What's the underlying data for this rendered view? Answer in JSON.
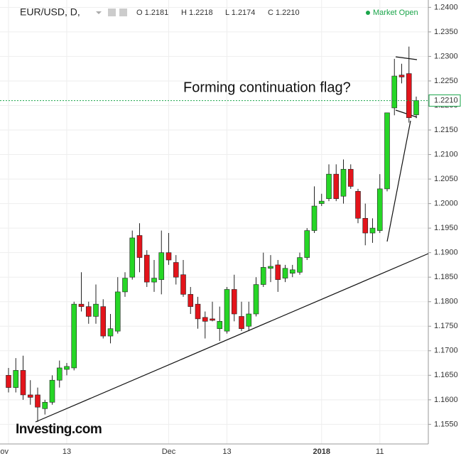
{
  "chart_data": {
    "type": "candlestick",
    "title": "EUR/USD, D,",
    "ohlc_text": [
      "O 1.2181",
      "H 1.2218",
      "L 1.2174",
      "C 1.2210"
    ],
    "status": "Market Open",
    "annotation": "Forming continuation flag?",
    "watermark": "Investing.com",
    "categories": [
      "ov",
      null,
      null,
      null,
      null,
      null,
      null,
      null,
      "13",
      null,
      null,
      null,
      null,
      null,
      null,
      null,
      null,
      null,
      null,
      null,
      null,
      null,
      "Dec",
      null,
      null,
      null,
      null,
      null,
      null,
      null,
      "13",
      null,
      null,
      null,
      null,
      null,
      null,
      null,
      null,
      null,
      null,
      null,
      null,
      "2018",
      null,
      null,
      null,
      null,
      null,
      null,
      null,
      "11",
      null,
      null,
      null,
      null,
      null
    ],
    "open": [
      1.165,
      1.1625,
      1.166,
      1.161,
      1.161,
      1.1582,
      1.1595,
      1.164,
      1.1662,
      1.1665,
      1.1795,
      1.179,
      1.177,
      1.179,
      1.173,
      1.174,
      1.182,
      1.185,
      1.1935,
      1.1895,
      1.184,
      1.1845,
      1.19,
      1.188,
      1.1855,
      1.1815,
      1.1795,
      1.1768,
      1.1765,
      1.1745,
      1.174,
      1.1825,
      1.177,
      1.175,
      1.1775,
      1.1835,
      1.1868,
      1.1875,
      1.1848,
      1.1858,
      1.186,
      1.189,
      1.1945,
      1.2,
      1.201,
      1.206,
      1.2015,
      1.207,
      1.2025,
      1.197,
      1.194,
      1.1945,
      1.203,
      1.2195,
      1.2262,
      1.2265,
      1.2181
    ],
    "high": [
      1.1665,
      1.1685,
      1.169,
      1.164,
      1.1625,
      1.16,
      1.165,
      1.168,
      1.1675,
      1.18,
      1.186,
      1.18,
      1.1835,
      1.1805,
      1.1775,
      1.185,
      1.186,
      1.1945,
      1.196,
      1.1905,
      1.1885,
      1.1945,
      1.194,
      1.1895,
      1.1885,
      1.183,
      1.181,
      1.178,
      1.18,
      1.179,
      1.183,
      1.1855,
      1.18,
      1.18,
      1.185,
      1.19,
      1.1895,
      1.1885,
      1.1875,
      1.1875,
      1.19,
      1.195,
      1.2035,
      1.202,
      1.208,
      1.208,
      1.209,
      1.208,
      1.203,
      1.2,
      1.197,
      1.206,
      1.2185,
      1.2295,
      1.2285,
      1.232,
      1.2218
    ],
    "low": [
      1.1615,
      1.1615,
      1.16,
      1.159,
      1.1555,
      1.157,
      1.159,
      1.1625,
      1.165,
      1.166,
      1.178,
      1.1755,
      1.1755,
      1.1725,
      1.1715,
      1.1735,
      1.181,
      1.1845,
      1.186,
      1.183,
      1.182,
      1.1815,
      1.1875,
      1.1835,
      1.181,
      1.1775,
      1.1745,
      1.1725,
      1.176,
      1.172,
      1.1735,
      1.176,
      1.174,
      1.174,
      1.177,
      1.183,
      1.184,
      1.182,
      1.184,
      1.185,
      1.1855,
      1.1885,
      1.194,
      1.1995,
      1.2005,
      1.2005,
      1.2,
      1.203,
      1.196,
      1.1915,
      1.192,
      1.194,
      1.2025,
      1.218,
      1.2245,
      1.2165,
      1.2174
    ],
    "close": [
      1.1625,
      1.166,
      1.161,
      1.1605,
      1.1585,
      1.1595,
      1.164,
      1.1665,
      1.1668,
      1.1795,
      1.179,
      1.177,
      1.1795,
      1.173,
      1.1745,
      1.182,
      1.1848,
      1.193,
      1.189,
      1.184,
      1.1848,
      1.19,
      1.1885,
      1.185,
      1.1815,
      1.179,
      1.1765,
      1.176,
      1.1762,
      1.176,
      1.1825,
      1.1775,
      1.1745,
      1.1775,
      1.1835,
      1.187,
      1.1872,
      1.1845,
      1.1868,
      1.1865,
      1.189,
      1.1945,
      1.1995,
      1.2005,
      1.206,
      1.201,
      1.207,
      1.2035,
      1.197,
      1.194,
      1.195,
      1.203,
      1.2185,
      1.226,
      1.2258,
      1.2175,
      1.221
    ],
    "up_color": "#26d626",
    "down_color": "#e3141b",
    "ylim": [
      1.151,
      1.2415
    ],
    "yticks": [
      {
        "value": 1.155,
        "label": "1.1550"
      },
      {
        "value": 1.16,
        "label": "1.1600"
      },
      {
        "value": 1.165,
        "label": "1.1650"
      },
      {
        "value": 1.17,
        "label": "1.1700"
      },
      {
        "value": 1.175,
        "label": "1.1750"
      },
      {
        "value": 1.18,
        "label": "1.1800"
      },
      {
        "value": 1.185,
        "label": "1.1850"
      },
      {
        "value": 1.19,
        "label": "1.1900"
      },
      {
        "value": 1.195,
        "label": "1.1950"
      },
      {
        "value": 1.2,
        "label": "1.2000"
      },
      {
        "value": 1.205,
        "label": "1.2050"
      },
      {
        "value": 1.21,
        "label": "1.2100"
      },
      {
        "value": 1.215,
        "label": "1.2150"
      },
      {
        "value": 1.22,
        "label": "1.2200"
      },
      {
        "value": 1.225,
        "label": "1.2250"
      },
      {
        "value": 1.23,
        "label": "1.2300"
      },
      {
        "value": 1.235,
        "label": "1.2350"
      },
      {
        "value": 1.24,
        "label": "1.2400"
      }
    ],
    "price_line": {
      "value": 1.221,
      "label": "1.2210"
    },
    "grid": true
  }
}
